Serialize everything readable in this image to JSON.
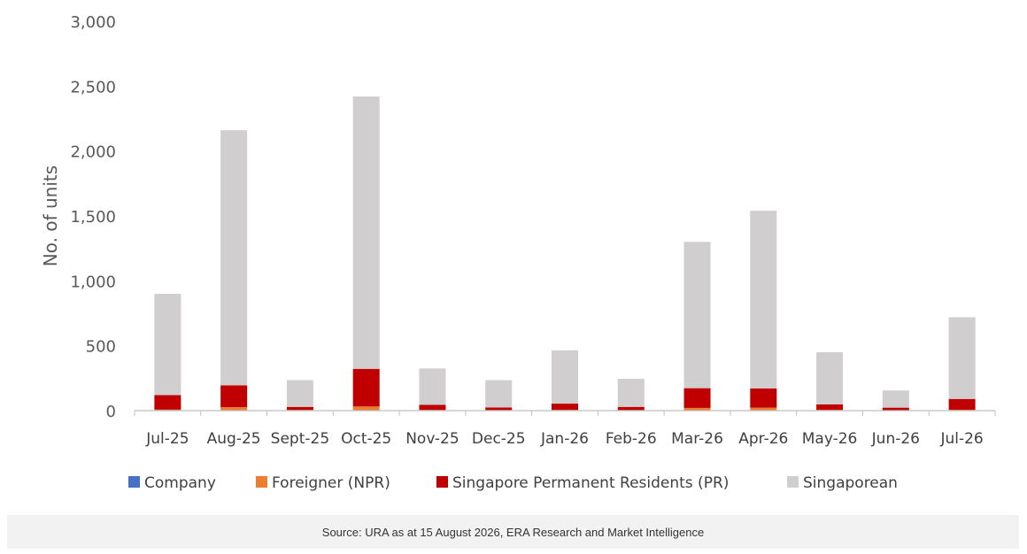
{
  "chart_data": {
    "type": "bar",
    "stacked": true,
    "ylabel": "No. of units",
    "xlabel": "",
    "ylim": [
      0,
      3000
    ],
    "yticks": [
      0,
      500,
      1000,
      1500,
      2000,
      2500,
      3000
    ],
    "ytick_labels": [
      "0",
      "500",
      "1,000",
      "1,500",
      "2,000",
      "2,500",
      "3,000"
    ],
    "grid": false,
    "legend_position": "bottom",
    "categories": [
      "Jul-25",
      "Aug-25",
      "Sept-25",
      "Oct-25",
      "Nov-25",
      "Dec-25",
      "Jan-26",
      "Feb-26",
      "Mar-26",
      "Apr-26",
      "May-26",
      "Jun-26",
      "Jul-26"
    ],
    "series": [
      {
        "name": "Company",
        "color": "#4472c4",
        "values": [
          0,
          2,
          0,
          2,
          0,
          0,
          0,
          0,
          1,
          1,
          0,
          0,
          0
        ]
      },
      {
        "name": "Foreigner (NPR)",
        "color": "#ed7d31",
        "values": [
          8,
          25,
          5,
          30,
          5,
          4,
          6,
          4,
          20,
          22,
          6,
          3,
          7
        ]
      },
      {
        "name": "Singapore Permanent Residents (PR)",
        "color": "#c00000",
        "values": [
          112,
          168,
          24,
          290,
          40,
          20,
          48,
          25,
          152,
          148,
          42,
          20,
          83
        ]
      },
      {
        "name": "Singaporean",
        "color": "#d0cece",
        "values": [
          780,
          1965,
          206,
          2098,
          280,
          211,
          411,
          216,
          1127,
          1369,
          402,
          132,
          630
        ]
      }
    ]
  },
  "source": {
    "text": "Source: URA as at 15 August 2026, ERA Research and Market Intelligence"
  }
}
